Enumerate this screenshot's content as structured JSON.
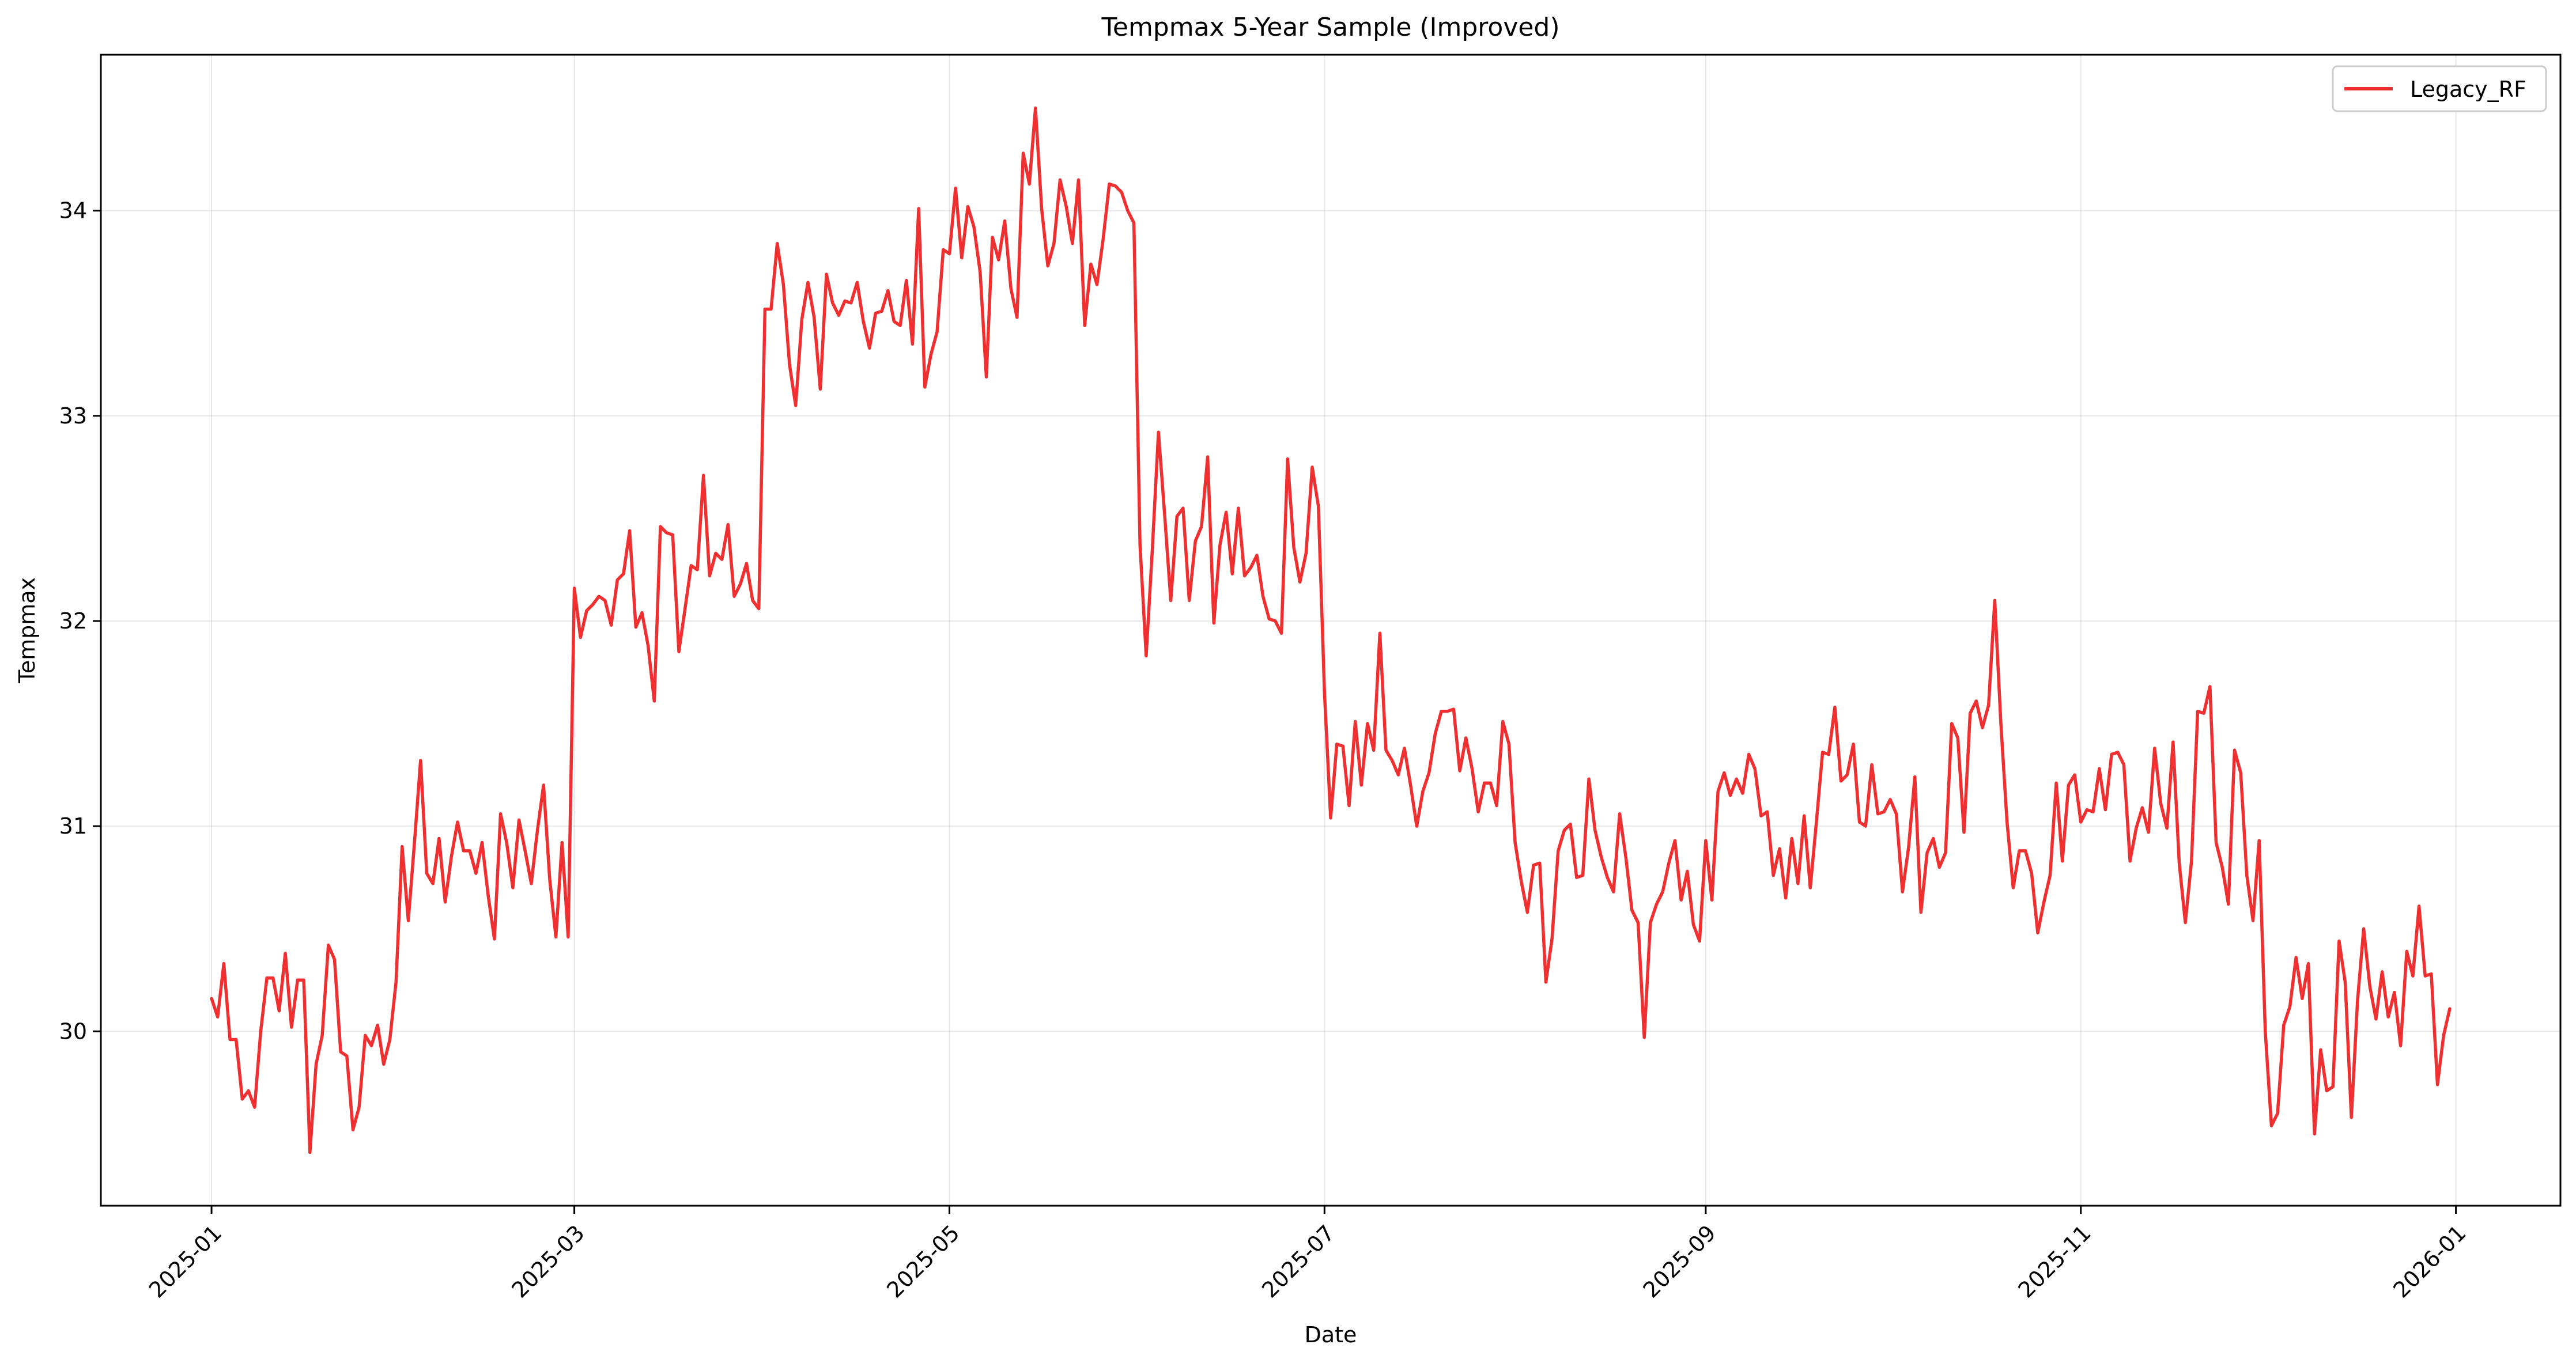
{
  "chart_data": {
    "type": "line",
    "title": "Tempmax 5-Year Sample (Improved)",
    "xlabel": "Date",
    "ylabel": "Tempmax",
    "x_tick_labels": [
      "2025-01",
      "2025-03",
      "2025-05",
      "2025-07",
      "2025-09",
      "2025-11",
      "2026-01"
    ],
    "x_tick_dates": [
      "2025-01-01",
      "2025-03-01",
      "2025-05-01",
      "2025-07-01",
      "2025-09-01",
      "2025-11-01",
      "2026-01-01"
    ],
    "y_ticks": [
      30,
      31,
      32,
      33,
      34
    ],
    "xlim": [
      "2024-12-14",
      "2026-01-18"
    ],
    "ylim": [
      29.15,
      34.76
    ],
    "grid": true,
    "legend": {
      "placement": "top-right"
    },
    "series": [
      {
        "name": "Legacy_RF",
        "color": "#f03030",
        "x_start": "2025-01-01",
        "x_step_days": 1,
        "values": [
          30.16,
          30.07,
          30.33,
          29.96,
          29.96,
          29.67,
          29.71,
          29.63,
          30.0,
          30.26,
          30.26,
          30.1,
          30.38,
          30.02,
          30.25,
          30.25,
          29.41,
          29.84,
          29.98,
          30.42,
          30.35,
          29.9,
          29.88,
          29.52,
          29.63,
          29.98,
          29.93,
          30.03,
          29.84,
          29.96,
          30.24,
          30.9,
          30.54,
          30.92,
          31.32,
          30.77,
          30.72,
          30.94,
          30.63,
          30.85,
          31.02,
          30.88,
          30.88,
          30.77,
          30.92,
          30.66,
          30.45,
          31.06,
          30.92,
          30.7,
          31.03,
          30.88,
          30.72,
          30.98,
          31.2,
          30.74,
          30.46,
          30.92,
          30.46,
          32.16,
          31.92,
          32.05,
          32.08,
          32.12,
          32.1,
          31.98,
          32.2,
          32.23,
          32.44,
          31.97,
          32.04,
          31.88,
          31.61,
          32.46,
          32.43,
          32.42,
          31.85,
          32.06,
          32.27,
          32.25,
          32.71,
          32.22,
          32.33,
          32.3,
          32.47,
          32.12,
          32.18,
          32.28,
          32.1,
          32.06,
          33.52,
          33.52,
          33.84,
          33.64,
          33.25,
          33.05,
          33.47,
          33.65,
          33.48,
          33.13,
          33.69,
          33.55,
          33.49,
          33.56,
          33.55,
          33.65,
          33.46,
          33.33,
          33.5,
          33.51,
          33.61,
          33.46,
          33.44,
          33.66,
          33.35,
          34.01,
          33.14,
          33.3,
          33.41,
          33.81,
          33.79,
          34.11,
          33.77,
          34.02,
          33.92,
          33.7,
          33.19,
          33.87,
          33.76,
          33.95,
          33.62,
          33.48,
          34.28,
          34.13,
          34.5,
          34.01,
          33.73,
          33.84,
          34.15,
          34.02,
          33.84,
          34.15,
          33.44,
          33.74,
          33.64,
          33.86,
          34.13,
          34.12,
          34.09,
          34.0,
          33.94,
          32.37,
          31.83,
          32.35,
          32.92,
          32.52,
          32.1,
          32.51,
          32.55,
          32.1,
          32.39,
          32.46,
          32.8,
          31.99,
          32.37,
          32.53,
          32.23,
          32.55,
          32.22,
          32.26,
          32.32,
          32.12,
          32.01,
          32.0,
          31.94,
          32.79,
          32.36,
          32.19,
          32.33,
          32.75,
          32.56,
          31.65,
          31.04,
          31.4,
          31.39,
          31.1,
          31.51,
          31.2,
          31.5,
          31.37,
          31.94,
          31.37,
          31.32,
          31.25,
          31.38,
          31.2,
          31.0,
          31.17,
          31.26,
          31.45,
          31.56,
          31.56,
          31.57,
          31.27,
          31.43,
          31.28,
          31.07,
          31.21,
          31.21,
          31.1,
          31.51,
          31.4,
          30.92,
          30.73,
          30.58,
          30.81,
          30.82,
          30.24,
          30.45,
          30.88,
          30.98,
          31.01,
          30.75,
          30.76,
          31.23,
          30.98,
          30.85,
          30.75,
          30.68,
          31.06,
          30.85,
          30.59,
          30.53,
          29.97,
          30.53,
          30.62,
          30.68,
          30.82,
          30.93,
          30.64,
          30.78,
          30.52,
          30.44,
          30.93,
          30.64,
          31.17,
          31.26,
          31.15,
          31.23,
          31.16,
          31.35,
          31.28,
          31.05,
          31.07,
          30.76,
          30.89,
          30.65,
          30.94,
          30.72,
          31.05,
          30.7,
          31.02,
          31.36,
          31.35,
          31.58,
          31.22,
          31.25,
          31.4,
          31.02,
          31.0,
          31.3,
          31.06,
          31.07,
          31.13,
          31.06,
          30.68,
          30.9,
          31.24,
          30.58,
          30.87,
          30.94,
          30.8,
          30.87,
          31.5,
          31.43,
          30.97,
          31.55,
          31.61,
          31.48,
          31.59,
          32.1,
          31.5,
          31.02,
          30.7,
          30.88,
          30.88,
          30.77,
          30.48,
          30.63,
          30.76,
          31.21,
          30.83,
          31.2,
          31.25,
          31.02,
          31.08,
          31.07,
          31.28,
          31.08,
          31.35,
          31.36,
          31.3,
          30.83,
          30.99,
          31.09,
          30.97,
          31.38,
          31.11,
          30.99,
          31.41,
          30.82,
          30.53,
          30.83,
          31.56,
          31.55,
          31.68,
          30.92,
          30.8,
          30.62,
          31.37,
          31.26,
          30.76,
          30.54,
          30.93,
          30.0,
          29.54,
          29.6,
          30.03,
          30.12,
          30.36,
          30.16,
          30.33,
          29.5,
          29.91,
          29.71,
          29.73,
          30.44,
          30.24,
          29.58,
          30.15,
          30.5,
          30.22,
          30.06,
          30.29,
          30.07,
          30.19,
          29.93,
          30.39,
          30.27,
          30.61,
          30.27,
          30.28,
          29.74,
          29.98,
          30.11
        ]
      }
    ]
  }
}
